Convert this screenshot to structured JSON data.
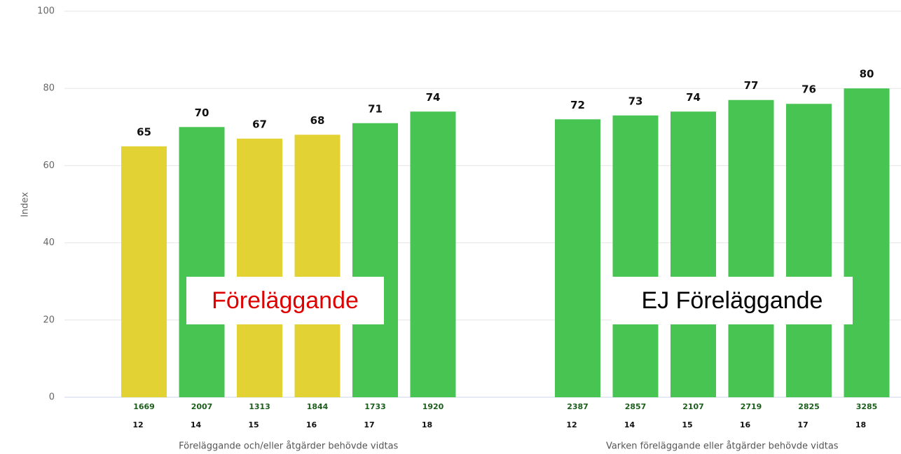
{
  "chart_data": {
    "type": "bar",
    "ylabel": "Index",
    "ylim": [
      0,
      100
    ],
    "yticks": [
      0,
      20,
      40,
      60,
      80,
      100
    ],
    "grid": true,
    "groups": [
      {
        "name": "Föreläggande och/eller åtgärder behövde vidtas",
        "annotation": "Föreläggande",
        "categories": [
          "12",
          "14",
          "15",
          "16",
          "17",
          "18"
        ],
        "counts": [
          1669,
          2007,
          1313,
          1844,
          1733,
          1920
        ],
        "values": [
          65,
          70,
          67,
          68,
          71,
          74
        ],
        "colors": [
          "#e3d233",
          "#47c452",
          "#e3d233",
          "#e3d233",
          "#47c452",
          "#47c452"
        ]
      },
      {
        "name": "Varken föreläggande eller åtgärder behövde vidtas",
        "annotation": "EJ Föreläggande",
        "categories": [
          "12",
          "14",
          "15",
          "16",
          "17",
          "18"
        ],
        "counts": [
          2387,
          2857,
          2107,
          2719,
          2825,
          3285
        ],
        "values": [
          72,
          73,
          74,
          77,
          76,
          80
        ],
        "colors": [
          "#47c452",
          "#47c452",
          "#47c452",
          "#47c452",
          "#47c452",
          "#47c452"
        ]
      }
    ]
  }
}
